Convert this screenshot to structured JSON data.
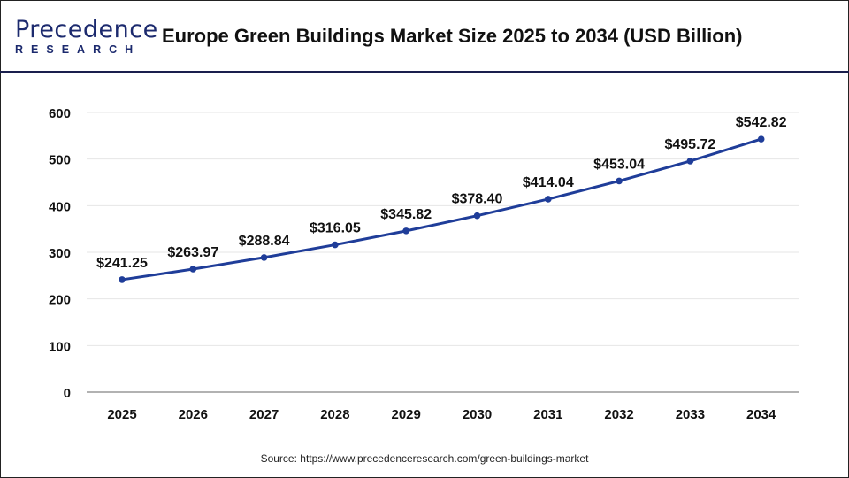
{
  "header": {
    "logo_top": "Precedence",
    "logo_bottom": "RESEARCH",
    "title": "Europe Green Buildings Market Size 2025 to 2034 (USD Billion)"
  },
  "source": "Source: https://www.precedenceresearch.com/green-buildings-market",
  "chart_data": {
    "type": "line",
    "title": "Europe Green Buildings Market Size 2025 to 2034 (USD Billion)",
    "xlabel": "",
    "ylabel": "",
    "categories": [
      "2025",
      "2026",
      "2027",
      "2028",
      "2029",
      "2030",
      "2031",
      "2032",
      "2033",
      "2034"
    ],
    "values": [
      241.25,
      263.97,
      288.84,
      316.05,
      345.82,
      378.4,
      414.04,
      453.04,
      495.72,
      542.82
    ],
    "data_labels": [
      "$241.25",
      "$263.97",
      "$288.84",
      "$316.05",
      "$345.82",
      "$378.40",
      "$414.04",
      "$453.04",
      "$495.72",
      "$542.82"
    ],
    "ylim": [
      0,
      600
    ],
    "yticks": [
      "0",
      "100",
      "200",
      "300",
      "400",
      "500",
      "600"
    ],
    "grid": true,
    "legend": "none",
    "line_color": "#1f3d99"
  }
}
